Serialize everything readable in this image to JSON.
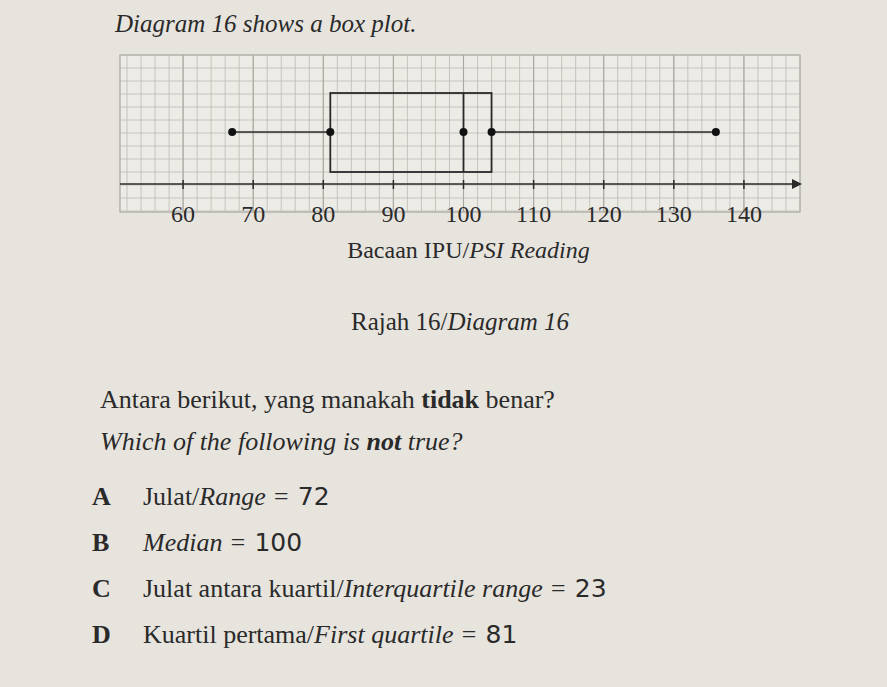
{
  "intro": "Diagram 16 shows a box plot.",
  "chart_data": {
    "type": "box",
    "x_label": "Bacaan IPU/PSI Reading",
    "values": {
      "min": 67,
      "q1": 81,
      "median": 100,
      "q3": 104,
      "max": 136
    },
    "xlim": [
      51,
      148
    ],
    "xticks": [
      60,
      70,
      80,
      90,
      100,
      110,
      120,
      130,
      140
    ],
    "grid": true
  },
  "caption": "Rajah 16/Diagram 16",
  "question_ms": [
    "Antara berikut, yang manakah ",
    "tidak",
    " benar?"
  ],
  "question_en": [
    "Which of the following is ",
    "not",
    " true?"
  ],
  "options": [
    {
      "letter": "A",
      "label": "Julat/Range =",
      "value": 72
    },
    {
      "letter": "B",
      "label": "Median =",
      "value": 100
    },
    {
      "letter": "C",
      "label": "Julat antara kuartil/Interquartile range =",
      "value": 23
    },
    {
      "letter": "D",
      "label": "Kuartil pertama/First quartile =",
      "value": 81
    }
  ]
}
